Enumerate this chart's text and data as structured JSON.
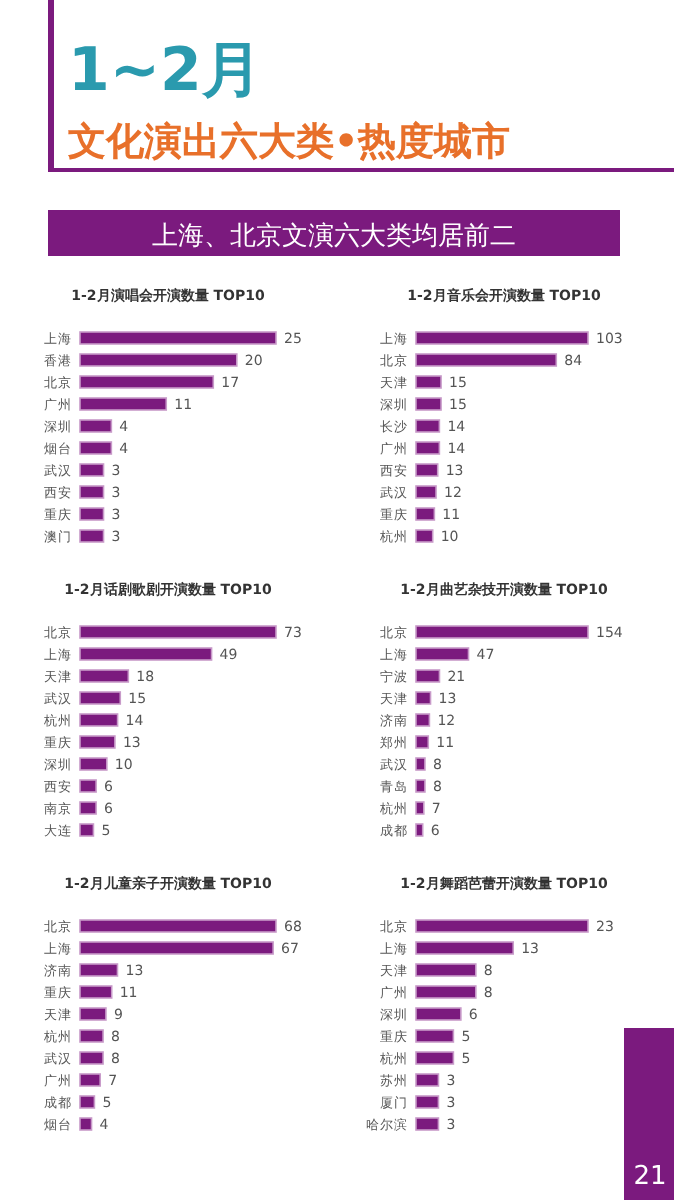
{
  "chart_data": [
    {
      "type": "other",
      "title": "1~2月",
      "subtitle": "文化演出六大类•热度城市",
      "annotations": [
        "上海、北京文演六大类均居前二",
        "21"
      ]
    },
    {
      "type": "bar",
      "orientation": "horizontal",
      "data_labels": true,
      "title": "1-2月演唱会开演数量 TOP10",
      "categories": [
        "上海",
        "香港",
        "北京",
        "广州",
        "深圳",
        "烟台",
        "武汉",
        "西安",
        "重庆",
        "澳门"
      ],
      "values": [
        25,
        20,
        17,
        11,
        4,
        4,
        3,
        3,
        3,
        3
      ],
      "color": "#7b1a7e"
    },
    {
      "type": "bar",
      "orientation": "horizontal",
      "data_labels": true,
      "title": "1-2月音乐会开演数量 TOP10",
      "categories": [
        "上海",
        "北京",
        "天津",
        "深圳",
        "长沙",
        "广州",
        "西安",
        "武汉",
        "重庆",
        "杭州"
      ],
      "values": [
        103,
        84,
        15,
        15,
        14,
        14,
        13,
        12,
        11,
        10
      ],
      "color": "#7b1a7e"
    },
    {
      "type": "bar",
      "orientation": "horizontal",
      "data_labels": true,
      "title": "1-2月话剧歌剧开演数量 TOP10",
      "categories": [
        "北京",
        "上海",
        "天津",
        "武汉",
        "杭州",
        "重庆",
        "深圳",
        "西安",
        "南京",
        "大连"
      ],
      "values": [
        73,
        49,
        18,
        15,
        14,
        13,
        10,
        6,
        6,
        5
      ],
      "color": "#7b1a7e"
    },
    {
      "type": "bar",
      "orientation": "horizontal",
      "data_labels": true,
      "title": "1-2月曲艺杂技开演数量 TOP10",
      "categories": [
        "北京",
        "上海",
        "宁波",
        "天津",
        "济南",
        "郑州",
        "武汉",
        "青岛",
        "杭州",
        "成都"
      ],
      "values": [
        154,
        47,
        21,
        13,
        12,
        11,
        8,
        8,
        7,
        6
      ],
      "color": "#7b1a7e"
    },
    {
      "type": "bar",
      "orientation": "horizontal",
      "data_labels": true,
      "title": "1-2月儿童亲子开演数量 TOP10",
      "categories": [
        "北京",
        "上海",
        "济南",
        "重庆",
        "天津",
        "杭州",
        "武汉",
        "广州",
        "成都",
        "烟台"
      ],
      "values": [
        68,
        67,
        13,
        11,
        9,
        8,
        8,
        7,
        5,
        4
      ],
      "color": "#7b1a7e"
    },
    {
      "type": "bar",
      "orientation": "horizontal",
      "data_labels": true,
      "title": "1-2月舞蹈芭蕾开演数量 TOP10",
      "categories": [
        "北京",
        "上海",
        "天津",
        "广州",
        "深圳",
        "重庆",
        "杭州",
        "苏州",
        "厦门",
        "哈尔滨"
      ],
      "values": [
        23,
        13,
        8,
        8,
        6,
        5,
        5,
        3,
        3,
        3
      ],
      "color": "#7b1a7e"
    }
  ]
}
